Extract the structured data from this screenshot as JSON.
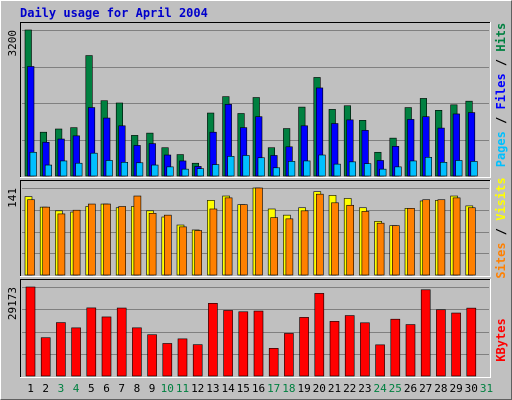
{
  "title": "Daily usage for April 2004",
  "colors": {
    "title": "#0000CC",
    "plot_bg": "#C0C0C0",
    "frame_bg": "#C0C0C0",
    "grid": "#808080",
    "hits": "#008040",
    "files": "#0000FF",
    "pages": "#00C0FF",
    "visits": "#FFFF00",
    "sites": "#FF8000",
    "kbytes": "#FF0000",
    "weekday": "#000000",
    "weekend": "#008040"
  },
  "side_labels": {
    "top": [
      {
        "text": "Pages",
        "color": "#00C0FF"
      },
      {
        "text": " / ",
        "color": "#000000"
      },
      {
        "text": "Files",
        "color": "#0000FF"
      },
      {
        "text": " / ",
        "color": "#000000"
      },
      {
        "text": "Hits",
        "color": "#008040"
      }
    ],
    "middle": [
      {
        "text": "Sites",
        "color": "#FF8000"
      },
      {
        "text": " / ",
        "color": "#000000"
      },
      {
        "text": "Visits",
        "color": "#FFFF00"
      }
    ],
    "bottom": [
      {
        "text": "KBytes",
        "color": "#FF0000"
      }
    ]
  },
  "chart_data": [
    {
      "type": "bar",
      "panel": "hits-files-pages",
      "y_max_label": "3200",
      "ylim": [
        0,
        3200
      ],
      "grid": true,
      "categories": [
        "1",
        "2",
        "3",
        "4",
        "5",
        "6",
        "7",
        "8",
        "9",
        "10",
        "11",
        "12",
        "13",
        "14",
        "15",
        "16",
        "17",
        "18",
        "19",
        "20",
        "21",
        "22",
        "23",
        "24",
        "25",
        "26",
        "27",
        "28",
        "29",
        "30",
        "31"
      ],
      "weekend_days": [
        "3",
        "4",
        "10",
        "11",
        "17",
        "18",
        "24",
        "25",
        "31"
      ],
      "series": [
        {
          "name": "Hits",
          "values": [
            3200,
            960,
            1030,
            1060,
            2640,
            1650,
            1600,
            890,
            940,
            620,
            470,
            280,
            1380,
            1740,
            1370,
            1720,
            620,
            1040,
            1510,
            2160,
            1460,
            1540,
            1220,
            520,
            830,
            1500,
            1700,
            1440,
            1560,
            1640,
            0
          ]
        },
        {
          "name": "Files",
          "values": [
            2400,
            740,
            810,
            880,
            1500,
            1270,
            1100,
            670,
            710,
            460,
            330,
            210,
            960,
            1570,
            1060,
            1300,
            450,
            640,
            1100,
            1930,
            1150,
            1230,
            1000,
            340,
            650,
            1240,
            1300,
            1050,
            1360,
            1390,
            0
          ]
        },
        {
          "name": "Pages",
          "values": [
            520,
            240,
            330,
            280,
            500,
            340,
            300,
            290,
            240,
            200,
            150,
            160,
            250,
            430,
            450,
            400,
            180,
            320,
            330,
            460,
            260,
            310,
            270,
            150,
            200,
            330,
            410,
            300,
            340,
            320,
            0
          ]
        }
      ]
    },
    {
      "type": "bar",
      "panel": "visits-sites",
      "y_max_label": "141",
      "ylim": [
        0,
        141
      ],
      "grid": true,
      "categories": [
        "1",
        "2",
        "3",
        "4",
        "5",
        "6",
        "7",
        "8",
        "9",
        "10",
        "11",
        "12",
        "13",
        "14",
        "15",
        "16",
        "17",
        "18",
        "19",
        "20",
        "21",
        "22",
        "23",
        "24",
        "25",
        "26",
        "27",
        "28",
        "29",
        "30",
        "31"
      ],
      "series": [
        {
          "name": "Visits",
          "values": [
            127,
            110,
            104,
            102,
            111,
            115,
            109,
            111,
            104,
            94,
            81,
            73,
            121,
            128,
            114,
            141,
            107,
            97,
            109,
            135,
            129,
            124,
            109,
            87,
            80,
            108,
            120,
            121,
            128,
            112,
            0
          ]
        },
        {
          "name": "Sites",
          "values": [
            122,
            110,
            99,
            105,
            115,
            115,
            111,
            128,
            100,
            97,
            78,
            72,
            107,
            125,
            114,
            141,
            93,
            91,
            104,
            131,
            117,
            113,
            103,
            84,
            80,
            108,
            122,
            122,
            125,
            109,
            0
          ]
        }
      ]
    },
    {
      "type": "bar",
      "panel": "kbytes",
      "y_max_label": "29173",
      "ylim": [
        0,
        29173
      ],
      "grid": true,
      "categories": [
        "1",
        "2",
        "3",
        "4",
        "5",
        "6",
        "7",
        "8",
        "9",
        "10",
        "11",
        "12",
        "13",
        "14",
        "15",
        "16",
        "17",
        "18",
        "19",
        "20",
        "21",
        "22",
        "23",
        "24",
        "25",
        "26",
        "27",
        "28",
        "29",
        "30",
        "31"
      ],
      "series": [
        {
          "name": "KBytes",
          "values": [
            29173,
            12550,
            17510,
            15780,
            22320,
            19360,
            22280,
            15790,
            13530,
            10660,
            12170,
            10270,
            23830,
            21480,
            21050,
            21290,
            9070,
            13950,
            19210,
            27080,
            17910,
            19810,
            17440,
            10210,
            18620,
            16860,
            28260,
            21720,
            20640,
            22250,
            0
          ]
        }
      ]
    }
  ]
}
